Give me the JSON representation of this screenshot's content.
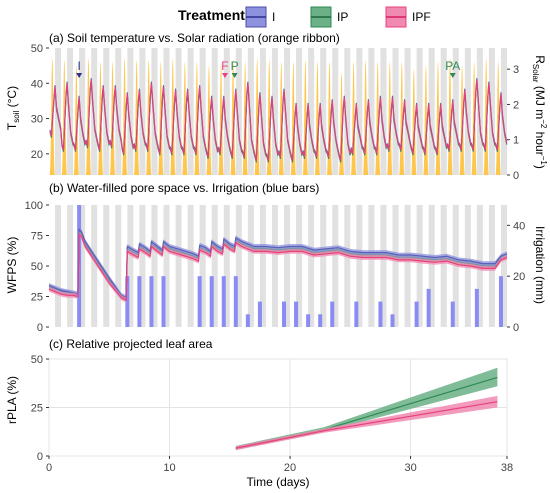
{
  "legend": {
    "title": "Treatment",
    "items": [
      {
        "label": "I",
        "color": "#5a5fb7"
      },
      {
        "label": "IP",
        "color": "#2e8a55"
      },
      {
        "label": "IPF",
        "color": "#e8407c"
      }
    ]
  },
  "colors": {
    "I": "#5a5fb7",
    "IP": "#2e8a55",
    "IPF": "#e8407c",
    "I_fill": "#8e92de",
    "IP_fill": "#6bb086",
    "IPF_fill": "#f08ab0",
    "solar": "#ffc64d",
    "irrigation": "#8a8cf3",
    "night": "#e1e1e1",
    "marker_F": "#e8407c",
    "marker_P": "#2e8a55",
    "marker_I": "#2b2f8f"
  },
  "chart_data": [
    {
      "type": "line",
      "panel": "a",
      "title": "(a) Soil temperature vs. Solar radiation (orange ribbon)",
      "ylabel_main": "T",
      "ylabel_sub": "soil",
      "ylabel_unit": " (°C)",
      "y2label_main": "R",
      "y2label_sub": "Solar",
      "y2label_unit_a": " (MJ m",
      "y2label_sup_a": "−2",
      "y2label_unit_b": " hour",
      "y2label_sup_b": "−1",
      "y2label_unit_c": ")",
      "ylim": [
        14,
        50
      ],
      "yticks": [
        "20",
        "30",
        "40",
        "50"
      ],
      "ytick_values": [
        20,
        30,
        40,
        50
      ],
      "y2lim": [
        0,
        3.6
      ],
      "y2ticks": [
        "0",
        "1",
        "2",
        "3"
      ],
      "y2tick_values": [
        0,
        1,
        2,
        3
      ],
      "xlim": [
        0,
        38
      ],
      "days": 38,
      "solar_daily_peak": [
        3.3,
        3.25,
        3.1,
        3.3,
        3.2,
        3.2,
        3.3,
        3.25,
        3.25,
        3.2,
        3.3,
        3.2,
        3.2,
        3.1,
        3.15,
        3.25,
        3.2,
        3.3,
        3.25,
        3.2,
        3.2,
        3.25,
        3.2,
        3.2,
        2.9,
        3.2,
        3.25,
        3.2,
        3.2,
        3.2,
        3.0,
        3.1,
        3.2,
        3.3,
        3.1,
        3.2,
        3.3,
        3.2
      ],
      "tsoil_daily_min": [
        25,
        21,
        21,
        22,
        21,
        22,
        20,
        21,
        21,
        20,
        20,
        20,
        20,
        19,
        20,
        19,
        19,
        18,
        18,
        19,
        18,
        19,
        19,
        19,
        18,
        20,
        20,
        20,
        21,
        21,
        20,
        20,
        20,
        21,
        21,
        21,
        21,
        21
      ],
      "tsoil_daily_max": [
        39,
        40,
        36,
        41,
        39,
        39,
        37,
        38,
        40,
        39,
        38,
        38,
        39,
        36,
        36,
        38,
        40,
        37,
        36,
        38,
        34,
        34,
        34,
        35,
        36,
        34,
        35,
        36,
        36,
        35,
        34,
        34,
        34,
        35,
        38,
        41,
        40,
        37
      ],
      "markers": [
        {
          "label": "I",
          "day": 2.5
        },
        {
          "label": "F",
          "day": 14.6
        },
        {
          "label": "P",
          "day": 15.4
        },
        {
          "label": "PA",
          "day": 33.5
        }
      ]
    },
    {
      "type": "line",
      "panel": "b",
      "title": "(b) Water-filled pore space vs. Irrigation (blue bars)",
      "ylabel": "WFPS (%)",
      "y2label": "Irrigation (mm)",
      "ylim": [
        0,
        100
      ],
      "yticks": [
        "0",
        "25",
        "50",
        "75",
        "100"
      ],
      "ytick_values": [
        0,
        25,
        50,
        75,
        100
      ],
      "y2lim": [
        0,
        48
      ],
      "y2ticks": [
        "0",
        "20",
        "40"
      ],
      "y2tick_values": [
        0,
        20,
        40
      ],
      "irrigation": [
        {
          "day": 2.5,
          "mm": 48
        },
        {
          "day": 6.5,
          "mm": 20
        },
        {
          "day": 7.5,
          "mm": 20
        },
        {
          "day": 8.5,
          "mm": 20
        },
        {
          "day": 9.5,
          "mm": 20
        },
        {
          "day": 12.5,
          "mm": 20
        },
        {
          "day": 13.5,
          "mm": 20
        },
        {
          "day": 14.5,
          "mm": 20
        },
        {
          "day": 15.5,
          "mm": 20
        },
        {
          "day": 16.5,
          "mm": 5
        },
        {
          "day": 17.5,
          "mm": 10
        },
        {
          "day": 19.5,
          "mm": 10
        },
        {
          "day": 20.5,
          "mm": 10
        },
        {
          "day": 21.5,
          "mm": 5
        },
        {
          "day": 22.5,
          "mm": 5
        },
        {
          "day": 23.5,
          "mm": 10
        },
        {
          "day": 25.5,
          "mm": 10
        },
        {
          "day": 27.5,
          "mm": 10
        },
        {
          "day": 28.5,
          "mm": 5
        },
        {
          "day": 30.5,
          "mm": 10
        },
        {
          "day": 31.5,
          "mm": 15
        },
        {
          "day": 33.5,
          "mm": 10
        },
        {
          "day": 35.5,
          "mm": 15
        },
        {
          "day": 37.5,
          "mm": 20
        }
      ],
      "series": [
        {
          "name": "I",
          "x": [
            0,
            0.5,
            1,
            1.5,
            2,
            2.4,
            2.5,
            2.7,
            3,
            4,
            5,
            6,
            6.4,
            6.5,
            7,
            7.4,
            7.5,
            8,
            8.4,
            8.5,
            9,
            9.4,
            9.5,
            10,
            11,
            12,
            12.4,
            12.5,
            13,
            13.4,
            13.5,
            14,
            14.4,
            14.5,
            15,
            15.4,
            15.5,
            16,
            17,
            18,
            19,
            20,
            21,
            22,
            23,
            24,
            25,
            26,
            27,
            28,
            29,
            30,
            31,
            32,
            33,
            34,
            35,
            36,
            37,
            37.5,
            38
          ],
          "y": [
            34,
            32,
            30,
            29,
            28,
            27,
            80,
            78,
            70,
            55,
            40,
            26,
            24,
            66,
            63,
            61,
            68,
            65,
            62,
            70,
            66,
            63,
            70,
            66,
            63,
            60,
            58,
            67,
            65,
            62,
            70,
            66,
            64,
            72,
            68,
            66,
            73,
            70,
            66,
            66,
            65,
            66,
            66,
            63,
            64,
            65,
            62,
            61,
            61,
            61,
            59,
            59,
            58,
            57,
            58,
            55,
            54,
            52,
            52,
            58,
            60
          ]
        },
        {
          "name": "IP",
          "x": [
            0,
            0.5,
            1,
            1.5,
            2,
            2.4,
            2.5,
            2.7,
            3,
            4,
            5,
            6,
            6.4,
            6.5,
            7,
            7.4,
            7.5,
            8,
            8.4,
            8.5,
            9,
            9.4,
            9.5,
            10,
            11,
            12,
            12.4,
            12.5,
            13,
            13.4,
            13.5,
            14,
            14.4,
            14.5,
            15,
            15.4,
            15.5,
            16,
            17,
            18,
            19,
            20,
            21,
            22,
            23,
            24,
            25,
            26,
            27,
            28,
            29,
            30,
            31,
            32,
            33,
            34,
            35,
            36,
            37,
            37.5,
            38
          ],
          "y": [
            33,
            31,
            29,
            28,
            27,
            26,
            78,
            76,
            68,
            53,
            38,
            25,
            23,
            64,
            61,
            59,
            66,
            63,
            60,
            68,
            64,
            61,
            68,
            64,
            61,
            58,
            56,
            65,
            63,
            60,
            68,
            64,
            62,
            70,
            66,
            64,
            71,
            68,
            64,
            64,
            63,
            64,
            64,
            61,
            62,
            63,
            60,
            59,
            59,
            59,
            57,
            57,
            56,
            55,
            56,
            53,
            52,
            50,
            50,
            57,
            58
          ]
        },
        {
          "name": "IPF",
          "x": [
            0,
            0.5,
            1,
            1.5,
            2,
            2.4,
            2.5,
            2.7,
            3,
            4,
            5,
            6,
            6.4,
            6.5,
            7,
            7.4,
            7.5,
            8,
            8.4,
            8.5,
            9,
            9.4,
            9.5,
            10,
            11,
            12,
            12.4,
            12.5,
            13,
            13.4,
            13.5,
            14,
            14.4,
            14.5,
            15,
            15.4,
            15.5,
            16,
            17,
            18,
            19,
            20,
            21,
            22,
            23,
            24,
            25,
            26,
            27,
            28,
            29,
            30,
            31,
            32,
            33,
            34,
            35,
            36,
            37,
            37.5,
            38
          ],
          "y": [
            31,
            29,
            27,
            26,
            26,
            25,
            76,
            74,
            66,
            51,
            36,
            24,
            22,
            62,
            59,
            57,
            64,
            61,
            58,
            66,
            62,
            59,
            66,
            62,
            59,
            56,
            54,
            63,
            61,
            58,
            66,
            62,
            60,
            68,
            64,
            62,
            69,
            66,
            62,
            62,
            61,
            62,
            62,
            59,
            60,
            61,
            58,
            57,
            57,
            57,
            55,
            55,
            54,
            53,
            54,
            51,
            50,
            48,
            48,
            55,
            57
          ]
        }
      ]
    },
    {
      "type": "line",
      "panel": "c",
      "title": "(c) Relative projected leaf area",
      "ylabel": "rPLA (%)",
      "xlabel": "Time (days)",
      "ylim": [
        0,
        50
      ],
      "yticks": [
        "0",
        "25",
        "50"
      ],
      "ytick_values": [
        0,
        25,
        50
      ],
      "xlim": [
        0,
        38
      ],
      "xticks": [
        "0",
        "10",
        "20",
        "30",
        "38"
      ],
      "xtick_values": [
        0,
        10,
        20,
        30,
        38
      ],
      "series": [
        {
          "name": "IP",
          "x": [
            15.5,
            22.8,
            37.2
          ],
          "y": [
            4.2,
            13.5,
            40.5
          ],
          "lower": [
            3.2,
            12.5,
            36.0
          ],
          "upper": [
            5.2,
            14.8,
            45.5
          ]
        },
        {
          "name": "IPF",
          "x": [
            15.5,
            22.8,
            37.2
          ],
          "y": [
            4.0,
            13.0,
            28.0
          ],
          "lower": [
            3.0,
            12.0,
            25.0
          ],
          "upper": [
            5.0,
            14.0,
            31.0
          ]
        }
      ]
    }
  ]
}
